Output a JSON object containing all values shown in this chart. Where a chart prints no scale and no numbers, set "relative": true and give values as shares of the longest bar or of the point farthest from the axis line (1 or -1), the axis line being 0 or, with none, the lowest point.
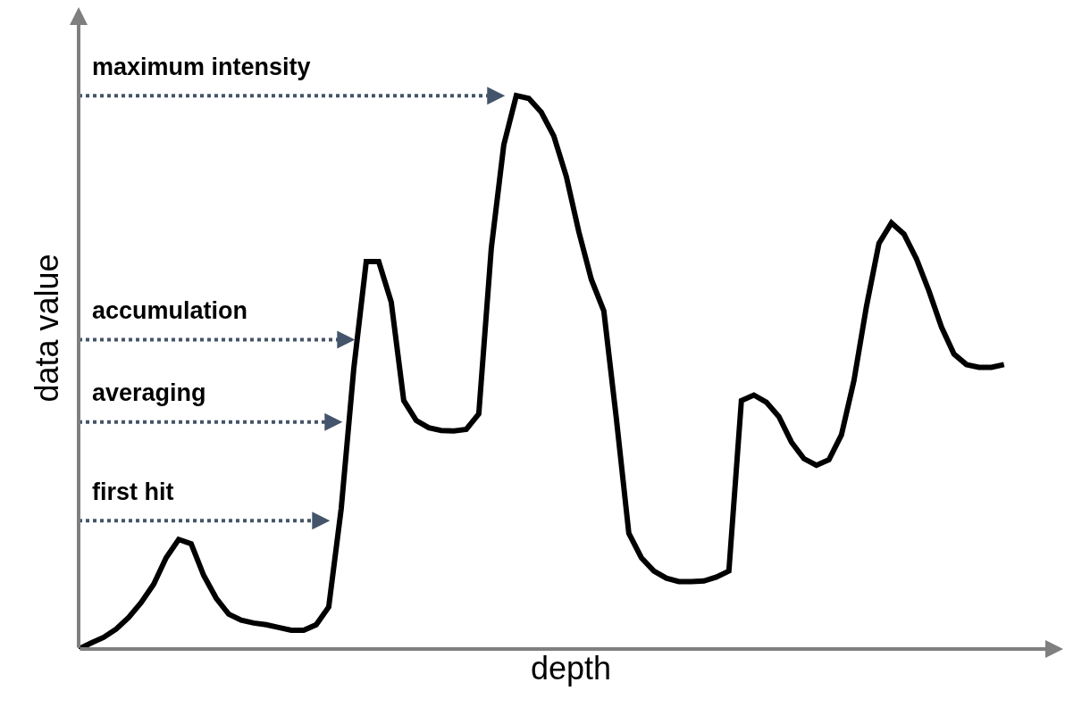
{
  "chart_data": {
    "type": "line",
    "relative": true,
    "xlabel": "depth",
    "ylabel": "data value",
    "categories": [
      null,
      null,
      null,
      null,
      null,
      null,
      null,
      null,
      null,
      null,
      null,
      null,
      null,
      null,
      null,
      null,
      null,
      null,
      null,
      null,
      null,
      null,
      null,
      null,
      null,
      null,
      null,
      null,
      null,
      null,
      null,
      null,
      null,
      null,
      null,
      null,
      null,
      null,
      null,
      null,
      null,
      null,
      null,
      null,
      null,
      null,
      null,
      null,
      null,
      null,
      null,
      null,
      null,
      null,
      null,
      null,
      null,
      null,
      null,
      null,
      null,
      null,
      null,
      null,
      null,
      null,
      null,
      null,
      null,
      null,
      null,
      null,
      null,
      null,
      null
    ],
    "series": [
      {
        "color": "#000000",
        "values": [
          0,
          0.011,
          0.021,
          0.036,
          0.057,
          0.084,
          0.117,
          0.165,
          0.198,
          0.19,
          0.133,
          0.092,
          0.063,
          0.052,
          0.047,
          0.044,
          0.039,
          0.034,
          0.034,
          0.044,
          0.076,
          0.254,
          0.506,
          0.7,
          0.7,
          0.627,
          0.449,
          0.413,
          0.4,
          0.395,
          0.394,
          0.397,
          0.425,
          0.724,
          0.911,
          1.0,
          0.995,
          0.97,
          0.927,
          0.854,
          0.754,
          0.668,
          0.611,
          0.417,
          0.209,
          0.165,
          0.141,
          0.128,
          0.122,
          0.122,
          0.123,
          0.13,
          0.141,
          0.449,
          0.459,
          0.446,
          0.42,
          0.374,
          0.344,
          0.332,
          0.342,
          0.387,
          0.485,
          0.619,
          0.733,
          0.77,
          0.75,
          0.705,
          0.647,
          0.582,
          0.533,
          0.514,
          0.509,
          0.509,
          0.514
        ]
      }
    ],
    "ref_lines": [
      {
        "axis": "y",
        "value": 1.0,
        "label": "maximum intensity",
        "color": "#44546a",
        "line_style": "dotted"
      },
      {
        "axis": "y",
        "value": 0.559,
        "label": "accumulation",
        "color": "#44546a",
        "line_style": "dotted"
      },
      {
        "axis": "y",
        "value": 0.41,
        "label": "averaging",
        "color": "#44546a",
        "line_style": "dotted"
      },
      {
        "axis": "y",
        "value": 0.232,
        "label": "first hit",
        "color": "#44546a",
        "line_style": "dotted"
      }
    ],
    "marker": "none",
    "line_style": "solid"
  }
}
